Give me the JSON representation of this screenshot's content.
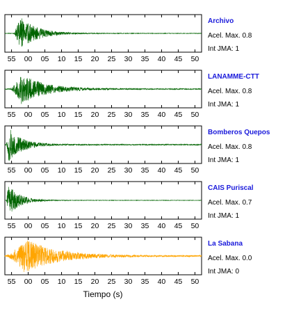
{
  "chart_data": {
    "type": "line",
    "xlabel": "Tiempo (s)",
    "x_tick_labels": [
      "55",
      "00",
      "05",
      "10",
      "15",
      "20",
      "25",
      "30",
      "35",
      "40",
      "45",
      "50"
    ],
    "xlim": [
      53,
      112
    ],
    "grid": false,
    "panels": [
      {
        "name": "Archivo",
        "accel_label": "Acel. Max. 0.8",
        "jma_label": "Int JMA: 1",
        "color": "#006400",
        "onset": 55.5,
        "peak": 57.5,
        "amp": 0.95,
        "decay": 5.0,
        "rise": 1.2,
        "noise": 0.015,
        "seed": 11
      },
      {
        "name": "LANAMME-CTT",
        "accel_label": "Acel. Max. 0.8",
        "jma_label": "Int JMA: 1",
        "color": "#006400",
        "onset": 54.5,
        "peak": 58.0,
        "amp": 0.85,
        "decay": 7.0,
        "rise": 1.8,
        "noise": 0.03,
        "seed": 23
      },
      {
        "name": "Bomberos Quepos",
        "accel_label": "Acel. Max. 0.8",
        "jma_label": "Int JMA: 1",
        "color": "#006400",
        "onset": 53.3,
        "peak": 54.2,
        "amp": 0.95,
        "decay": 4.0,
        "rise": 0.5,
        "noise": 0.03,
        "seed": 37
      },
      {
        "name": "CAIS Puriscal",
        "accel_label": "Acel. Max. 0.7",
        "jma_label": "Int JMA: 1",
        "color": "#006400",
        "onset": 53.4,
        "peak": 54.0,
        "amp": 0.9,
        "decay": 3.5,
        "rise": 0.4,
        "noise": 0.012,
        "seed": 41
      },
      {
        "name": "La Sabana",
        "accel_label": "Acel. Max. 0.0",
        "jma_label": "Int JMA: 0",
        "color": "#FFA500",
        "onset": 53.2,
        "peak": 59.0,
        "amp": 1.0,
        "decay": 9.0,
        "rise": 2.5,
        "noise": 0.04,
        "seed": 53
      }
    ]
  }
}
